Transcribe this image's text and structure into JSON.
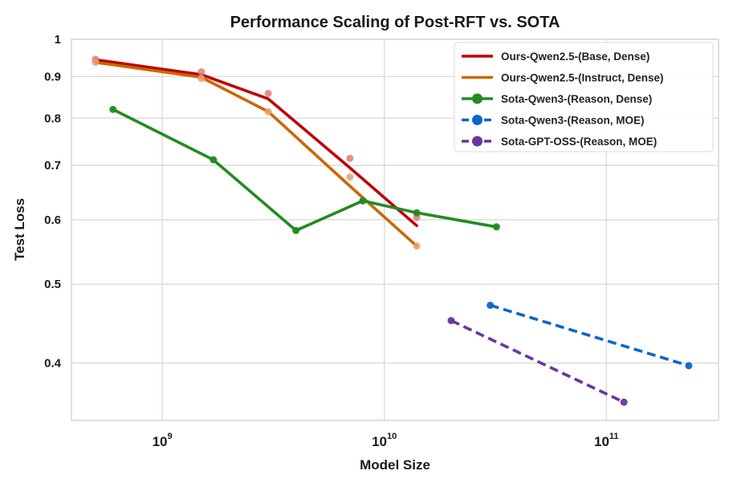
{
  "chart_data": {
    "type": "line",
    "title": "Performance Scaling of Post-RFT vs. SOTA",
    "xlabel": "Model Size",
    "ylabel": "Test Loss",
    "xscale": "log",
    "yscale": "log",
    "xlim": [
      390000000,
      320000000000
    ],
    "ylim": [
      0.34,
      1.0
    ],
    "grid": true,
    "legend_position": "top-right",
    "x_ticks": [
      {
        "base": "10",
        "exp": "9",
        "value": 1000000000
      },
      {
        "base": "10",
        "exp": "10",
        "value": 10000000000
      },
      {
        "base": "10",
        "exp": "11",
        "value": 100000000000
      }
    ],
    "y_ticks": [
      {
        "label": "1",
        "value": 1.0
      },
      {
        "label": "0.9",
        "value": 0.9
      },
      {
        "label": "0.8",
        "value": 0.8
      },
      {
        "label": "0.7",
        "value": 0.7
      },
      {
        "label": "0.6",
        "value": 0.6
      },
      {
        "label": "0.5",
        "value": 0.5
      },
      {
        "label": "0.4",
        "value": 0.4
      }
    ],
    "series": [
      {
        "name": "Ours-Qwen2.5-(Base, Dense)",
        "color": "#c00000",
        "scatter_color": "#e07a7a",
        "style": "solid",
        "x": [
          500000000,
          1500000000,
          3000000000,
          7000000000,
          14000000000
        ],
        "y": [
          0.945,
          0.912,
          0.858,
          0.714,
          0.604
        ],
        "fit_y": [
          0.944,
          0.905,
          0.845,
          0.695,
          0.59
        ]
      },
      {
        "name": "Ours-Qwen2.5-(Instruct, Dense)",
        "color": "#cc6600",
        "scatter_color": "#e8a070",
        "style": "solid",
        "x": [
          500000000,
          1500000000,
          3000000000,
          7000000000,
          14000000000
        ],
        "y": [
          0.937,
          0.895,
          0.815,
          0.677,
          0.557
        ],
        "fit_y": [
          0.937,
          0.898,
          0.815,
          0.66,
          0.557
        ]
      },
      {
        "name": "Sota-Qwen3-(Reason, Dense)",
        "color": "#228b22",
        "scatter_color": "#228b22",
        "style": "solid",
        "x": [
          600000000,
          1700000000,
          4000000000,
          8000000000,
          14000000000,
          32000000000
        ],
        "y": [
          0.82,
          0.711,
          0.582,
          0.633,
          0.612,
          0.588
        ]
      },
      {
        "name": "Sota-Qwen3-(Reason, MOE)",
        "color": "#0a66cc",
        "scatter_color": "#0a66cc",
        "style": "dashed",
        "x": [
          30000000000,
          235000000000
        ],
        "y": [
          0.471,
          0.397
        ]
      },
      {
        "name": "Sota-GPT-OSS-(Reason, MOE)",
        "color": "#6a35a0",
        "scatter_color": "#6a35a0",
        "style": "dashed",
        "x": [
          20000000000,
          120000000000
        ],
        "y": [
          0.451,
          0.358
        ]
      }
    ]
  }
}
